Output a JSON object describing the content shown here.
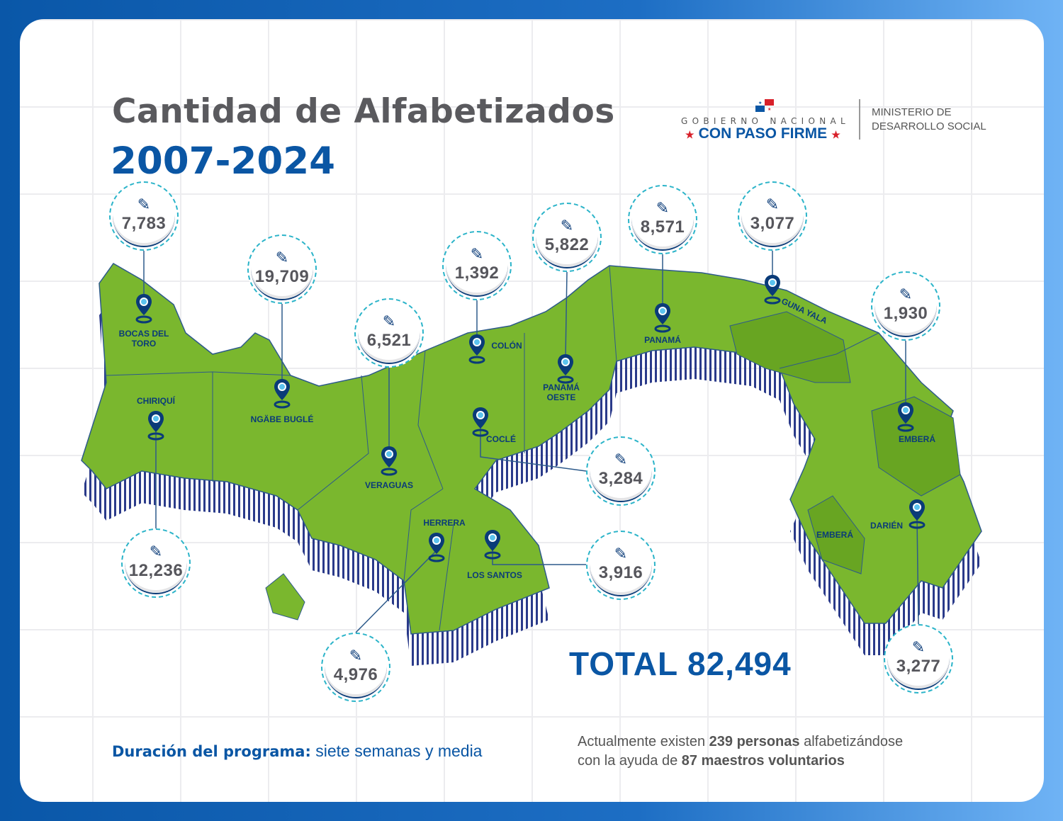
{
  "header": {
    "title": "Cantidad de Alfabetizados",
    "years": "2007-2024"
  },
  "logo": {
    "gobierno": "GOBIERNO NACIONAL",
    "slogan": "CON PASO FIRME",
    "star": "★",
    "ministry_line1": "MINISTERIO DE",
    "ministry_line2": "DESARROLLO SOCIAL"
  },
  "regions": {
    "bocas": {
      "name1": "BOCAS DEL",
      "name2": "TORO",
      "value": "7,783"
    },
    "ngabe": {
      "name": "NGÄBE BUGLÉ",
      "value": "19,709"
    },
    "chiriqui": {
      "name": "CHIRIQUÍ",
      "value": "12,236"
    },
    "veraguas": {
      "name": "VERAGUAS",
      "value": "6,521"
    },
    "colon": {
      "name": "COLÓN",
      "value": "1,392"
    },
    "panama_oeste": {
      "name1": "PANAMÁ",
      "name2": "OESTE",
      "value": "5,822"
    },
    "panama": {
      "name": "PANAMÁ",
      "value": "8,571"
    },
    "guna_yala": {
      "name": "GUNA YALA",
      "value": "3,077"
    },
    "embera_east": {
      "name": "EMBERÁ",
      "value": "1,930"
    },
    "cocle": {
      "name": "COCLÉ",
      "value": "3,284"
    },
    "los_santos": {
      "name": "LOS SANTOS",
      "value": "3,916"
    },
    "herrera": {
      "name": "HERRERA",
      "value": "4,976"
    },
    "darien": {
      "name": "DARIÉN",
      "value": "3,277"
    },
    "embera_west": {
      "name": "EMBERÁ"
    }
  },
  "total": "TOTAL 82,494",
  "footer": {
    "duration_label": "Duración del programa:",
    "duration_value": " siete semanas y media",
    "p1": "Actualmente existen ",
    "b1": "239 personas",
    "p2": " alfabetizándose",
    "p3": "con la ayuda de ",
    "b2": "87 maestros voluntarios"
  },
  "colors": {
    "green": "#7ab72e",
    "dark_green": "#68a522",
    "blue": "#0a56a4",
    "navy": "#0a3b78",
    "teal": "#2bb4c9"
  }
}
